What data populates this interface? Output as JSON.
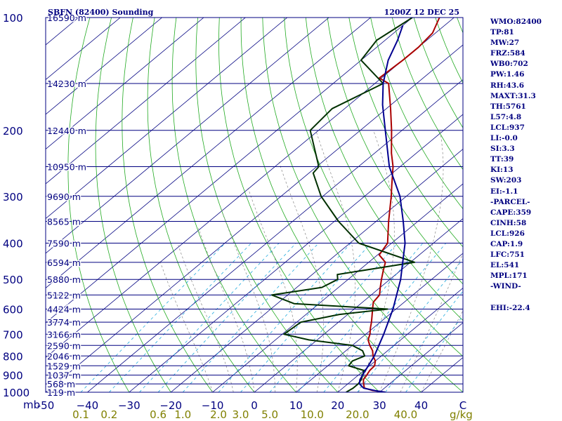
{
  "chart_data": {
    "type": "skew-t log-p sounding",
    "title": "SBFN (82400) Sounding",
    "timestamp": "1200Z 12 DEC 25",
    "ylabel": "mb",
    "xlabel_temperature": "C",
    "xlabel_mixing_ratio": "g/kg",
    "pressure_range_mb": [
      1000,
      100
    ],
    "temperature_range_c": [
      -50,
      50
    ],
    "pressure_levels": [
      100,
      200,
      300,
      400,
      500,
      600,
      700,
      800,
      900,
      1000
    ],
    "temperature_ticks": [
      -50,
      -40,
      -30,
      -20,
      -10,
      0,
      10,
      20,
      30,
      40,
      50
    ],
    "temperature_tick_labels": [
      "-50",
      "−40",
      "−30",
      "−20",
      "−10",
      "0",
      "10",
      "20",
      "30",
      "40",
      "C"
    ],
    "mixing_ratio_ticks": [
      {
        "label": "0.1",
        "value": 0.1
      },
      {
        "label": "0.2",
        "value": 0.2
      },
      {
        "label": "0.6",
        "value": 0.6
      },
      {
        "label": "1.0",
        "value": 1.0
      },
      {
        "label": "2.0",
        "value": 2.0
      },
      {
        "label": "3.0",
        "value": 3.0
      },
      {
        "label": "5.0",
        "value": 5.0
      },
      {
        "label": "10.0",
        "value": 10.0
      },
      {
        "label": "20.0",
        "value": 20.0
      },
      {
        "label": "40.0",
        "value": 40.0
      }
    ],
    "height_labels": [
      {
        "p": 100,
        "label": "16590 m"
      },
      {
        "p": 150,
        "label": "14230 m"
      },
      {
        "p": 200,
        "label": "12440 m"
      },
      {
        "p": 250,
        "label": "10950 m"
      },
      {
        "p": 300,
        "label": "9690 m"
      },
      {
        "p": 350,
        "label": "8565 m"
      },
      {
        "p": 400,
        "label": "7590 m"
      },
      {
        "p": 450,
        "label": "6594 m"
      },
      {
        "p": 500,
        "label": "5880 m"
      },
      {
        "p": 550,
        "label": "5122 m"
      },
      {
        "p": 600,
        "label": "4424 m"
      },
      {
        "p": 650,
        "label": "3774 m"
      },
      {
        "p": 700,
        "label": "3166 m"
      },
      {
        "p": 750,
        "label": "2590 m"
      },
      {
        "p": 800,
        "label": "2046 m"
      },
      {
        "p": 850,
        "label": "1529 m"
      },
      {
        "p": 900,
        "label": "1037 m"
      },
      {
        "p": 950,
        "label": "568 m"
      },
      {
        "p": 1000,
        "label": "119 m"
      }
    ],
    "series": [
      {
        "name": "Temperature",
        "color": "#aa0000",
        "points": [
          [
            1000,
            31.4
          ],
          [
            988,
            27.6
          ],
          [
            975,
            25.2
          ],
          [
            950,
            23.8
          ],
          [
            925,
            22.5
          ],
          [
            900,
            22.0
          ],
          [
            875,
            21.4
          ],
          [
            850,
            21.2
          ],
          [
            825,
            20.0
          ],
          [
            800,
            18.0
          ],
          [
            775,
            16.4
          ],
          [
            750,
            14.2
          ],
          [
            725,
            12.2
          ],
          [
            700,
            11.0
          ],
          [
            675,
            9.4
          ],
          [
            650,
            7.9
          ],
          [
            625,
            6.2
          ],
          [
            600,
            4.4
          ],
          [
            575,
            2.6
          ],
          [
            550,
            2.0
          ],
          [
            525,
            0.0
          ],
          [
            500,
            -2.0
          ],
          [
            475,
            -4.0
          ],
          [
            450,
            -6.0
          ],
          [
            430,
            -9.6
          ],
          [
            400,
            -11.0
          ],
          [
            350,
            -17.0
          ],
          [
            300,
            -23.6
          ],
          [
            280,
            -26.7
          ],
          [
            250,
            -31.7
          ],
          [
            230,
            -36.0
          ],
          [
            200,
            -42.5
          ],
          [
            175,
            -49.0
          ],
          [
            150,
            -56.7
          ],
          [
            145,
            -60.5
          ],
          [
            130,
            -60.0
          ],
          [
            120,
            -60.0
          ],
          [
            110,
            -60.7
          ],
          [
            100,
            -63.5
          ]
        ]
      },
      {
        "name": "Dew point",
        "color": "#003000",
        "points": [
          [
            1000,
            22.0
          ],
          [
            975,
            22.5
          ],
          [
            950,
            22.5
          ],
          [
            925,
            22.0
          ],
          [
            900,
            21.0
          ],
          [
            875,
            20.0
          ],
          [
            850,
            15.0
          ],
          [
            825,
            14.5
          ],
          [
            800,
            16.0
          ],
          [
            775,
            14.0
          ],
          [
            750,
            10.0
          ],
          [
            725,
            -2.0
          ],
          [
            700,
            -9.6
          ],
          [
            650,
            -9.0
          ],
          [
            620,
            -2.0
          ],
          [
            600,
            8.0
          ],
          [
            580,
            -16.0
          ],
          [
            550,
            -23.8
          ],
          [
            525,
            -14.0
          ],
          [
            500,
            -12.5
          ],
          [
            485,
            -14.0
          ],
          [
            450,
            1.0
          ],
          [
            400,
            -17.9
          ],
          [
            350,
            -29.0
          ],
          [
            300,
            -40.4
          ],
          [
            260,
            -49.0
          ],
          [
            250,
            -49.5
          ],
          [
            200,
            -62.0
          ],
          [
            175,
            -63.0
          ],
          [
            150,
            -58.0
          ],
          [
            130,
            -70.0
          ],
          [
            115,
            -72.0
          ],
          [
            100,
            -70.0
          ]
        ]
      },
      {
        "name": "Parcel",
        "color": "#000090",
        "points": [
          [
            1000,
            31.4
          ],
          [
            990,
            28.5
          ],
          [
            975,
            25.0
          ],
          [
            950,
            22.8
          ],
          [
            926,
            21.7
          ],
          [
            900,
            21.0
          ],
          [
            800,
            18.3
          ],
          [
            700,
            14.3
          ],
          [
            600,
            9.3
          ],
          [
            500,
            2.6
          ],
          [
            400,
            -6.8
          ],
          [
            350,
            -13.5
          ],
          [
            300,
            -21.5
          ],
          [
            250,
            -32.6
          ],
          [
            200,
            -44.0
          ],
          [
            171,
            -52.0
          ],
          [
            150,
            -58.0
          ],
          [
            130,
            -63.5
          ],
          [
            115,
            -67.0
          ],
          [
            105,
            -70.0
          ]
        ]
      }
    ],
    "indices": [
      {
        "name": "WMO",
        "value": "82400"
      },
      {
        "name": "TP",
        "value": "81"
      },
      {
        "name": "MW",
        "value": "27"
      },
      {
        "name": "FRZ",
        "value": "584"
      },
      {
        "name": "WB0",
        "value": "702"
      },
      {
        "name": "PW",
        "value": "1.46"
      },
      {
        "name": "RH",
        "value": "43.6"
      },
      {
        "name": "MAXT",
        "value": "31.3"
      },
      {
        "name": "TH",
        "value": "5761"
      },
      {
        "name": "L57",
        "value": "4.8"
      },
      {
        "name": "LCL",
        "value": "937"
      },
      {
        "name": "LI",
        "value": "-0.0"
      },
      {
        "name": "SI",
        "value": "3.3"
      },
      {
        "name": "TT",
        "value": "39"
      },
      {
        "name": "KI",
        "value": "13"
      },
      {
        "name": "SW",
        "value": "203"
      },
      {
        "name": "EI",
        "value": "-1.1"
      }
    ],
    "parcel_header": "-PARCEL-",
    "parcel_indices": [
      {
        "name": "CAPE",
        "value": "359"
      },
      {
        "name": "CINH",
        "value": "58"
      },
      {
        "name": "LCL",
        "value": "926"
      },
      {
        "name": "CAP",
        "value": "1.9"
      },
      {
        "name": "LFC",
        "value": "751"
      },
      {
        "name": "EL",
        "value": "541"
      },
      {
        "name": "MPL",
        "value": "171"
      }
    ],
    "wind_header": "-WIND-",
    "wind_indices": [
      {
        "name": "EHI",
        "value": "-22.4"
      }
    ]
  }
}
